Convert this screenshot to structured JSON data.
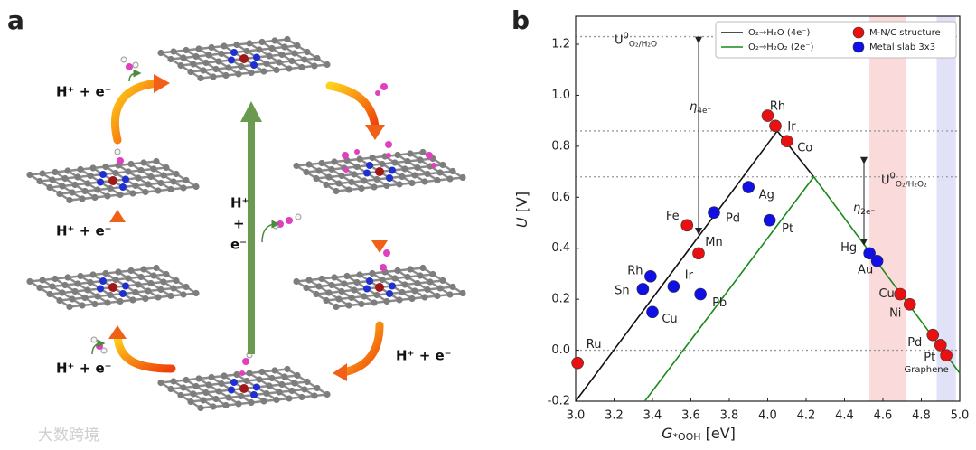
{
  "panel_a": {
    "label": "a",
    "steps": [
      "H⁺ + e⁻",
      "H⁺ + e⁻",
      "H⁺ + e⁻",
      "H⁺ + e⁻"
    ],
    "direct": {
      "top": "H⁺",
      "mid": "+",
      "bottom": "e⁻"
    }
  },
  "watermark": "大数跨境",
  "chart_data": {
    "type": "scatter",
    "panel_label": "b",
    "xlabel": {
      "base": "G",
      "sub": "*OOH",
      "unit": " [eV]"
    },
    "ylabel": {
      "base": "U",
      "unit": " [V]"
    },
    "xlim": [
      3.0,
      5.0
    ],
    "ylim": [
      -0.2,
      1.31
    ],
    "xticks": [
      {
        "value": 3.0,
        "label": "3.0"
      },
      3.2,
      3.4,
      3.6,
      3.8,
      {
        "value": 4.0,
        "label": "4.0"
      },
      4.2,
      4.4,
      4.6,
      4.8,
      {
        "value": 5.0,
        "label": "5.0"
      }
    ],
    "yticks": [
      -0.2,
      {
        "value": 0.0,
        "label": "0.0"
      },
      0.2,
      0.4,
      0.6,
      0.8,
      {
        "value": 1.0,
        "label": "1.0"
      },
      1.2
    ],
    "hlines": [
      1.23,
      0.86,
      0.68,
      0.0
    ],
    "bands": [
      {
        "range": [
          4.53,
          4.72
        ],
        "color": "#f9d3d3"
      },
      {
        "range": [
          4.88,
          4.98
        ],
        "color": "#dcdcf6"
      }
    ],
    "lines": [
      {
        "name": "O₂→H₂O (4e⁻)",
        "color": "#111111",
        "x": [
          3.0,
          4.05,
          4.24
        ],
        "values": [
          -0.2,
          0.86,
          0.68
        ]
      },
      {
        "name": "O₂→H₂O₂ (2e⁻)",
        "color": "#1a8a1a",
        "x": [
          3.36,
          4.24,
          5.0
        ],
        "values": [
          -0.2,
          0.68,
          -0.09
        ]
      }
    ],
    "series": [
      {
        "name": "M-N/C structure",
        "color": "#e81010",
        "labels": [
          "Ru",
          "Fe",
          "Mn",
          "Rh",
          "Ir",
          "Co",
          "Cu",
          "Ni",
          "Pd",
          "Pt",
          "Graphene"
        ],
        "x": [
          3.01,
          3.58,
          3.64,
          4.0,
          4.04,
          4.1,
          4.69,
          4.74,
          4.86,
          4.9,
          4.93
        ],
        "values": [
          -0.05,
          0.49,
          0.38,
          0.92,
          0.88,
          0.82,
          0.22,
          0.18,
          0.06,
          0.02,
          -0.02
        ]
      },
      {
        "name": "Metal slab 3x3",
        "color": "#1010e6",
        "labels": [
          "Rh",
          "Sn",
          "Cu",
          "Ir",
          "Pd",
          "Ag",
          "Pt",
          "Pb",
          "Hg",
          "Au"
        ],
        "x": [
          3.39,
          3.35,
          3.4,
          3.51,
          3.72,
          3.9,
          4.01,
          3.65,
          4.53,
          4.57
        ],
        "values": [
          0.29,
          0.24,
          0.15,
          0.25,
          0.54,
          0.64,
          0.51,
          0.22,
          0.38,
          0.35
        ]
      }
    ],
    "annotations": [
      {
        "base": "U",
        "sup": "0",
        "sub": "O₂/H₂O"
      },
      {
        "base": "η",
        "sub": "4e⁻"
      },
      {
        "base": "U",
        "sup": "0",
        "sub": "O₂/H₂O₂"
      },
      {
        "base": "η",
        "sub": "2e⁻"
      }
    ]
  }
}
